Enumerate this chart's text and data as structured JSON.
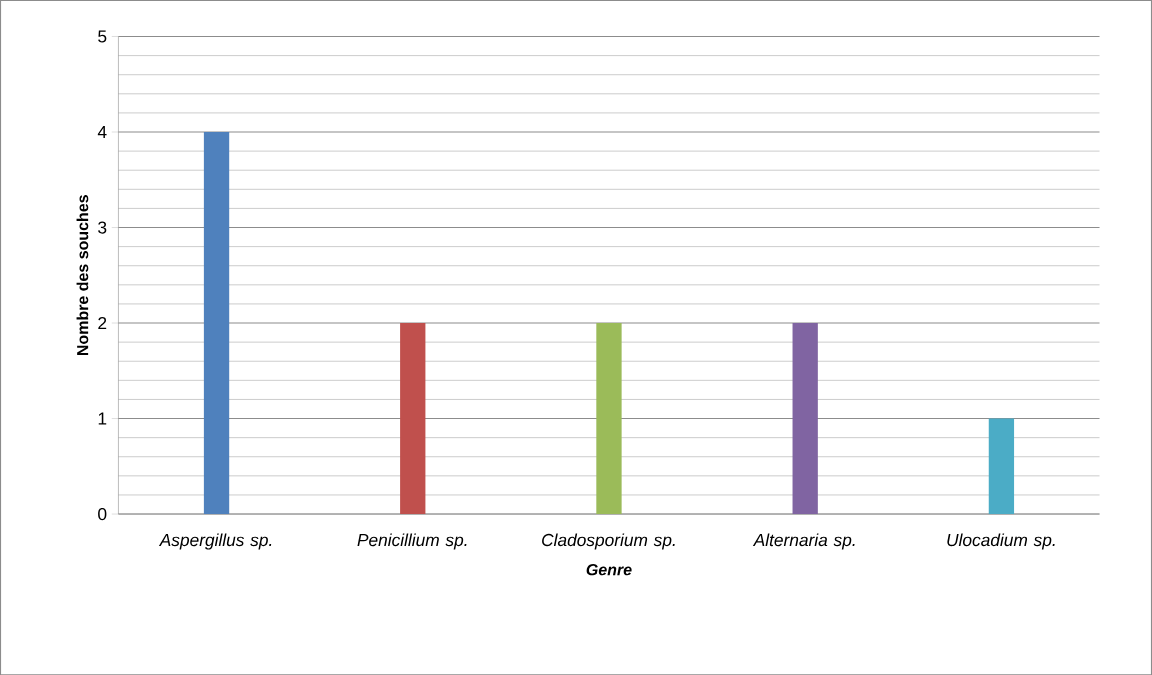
{
  "chart_data": {
    "type": "bar",
    "xlabel": "Genre",
    "ylabel": "Nombre des souches",
    "categories": [
      "Aspergillus sp.",
      "Penicillium sp.",
      "Cladosporium sp.",
      "Alternaria sp.",
      "Ulocadium sp."
    ],
    "values": [
      4,
      2,
      2,
      2,
      1
    ],
    "colors": [
      "#4f81bd",
      "#c0504d",
      "#9bbb59",
      "#8064a2",
      "#4bacc6"
    ],
    "ylim": [
      0,
      5
    ],
    "yticks": [
      0,
      1,
      2,
      3,
      4,
      5
    ],
    "grid": "y"
  }
}
